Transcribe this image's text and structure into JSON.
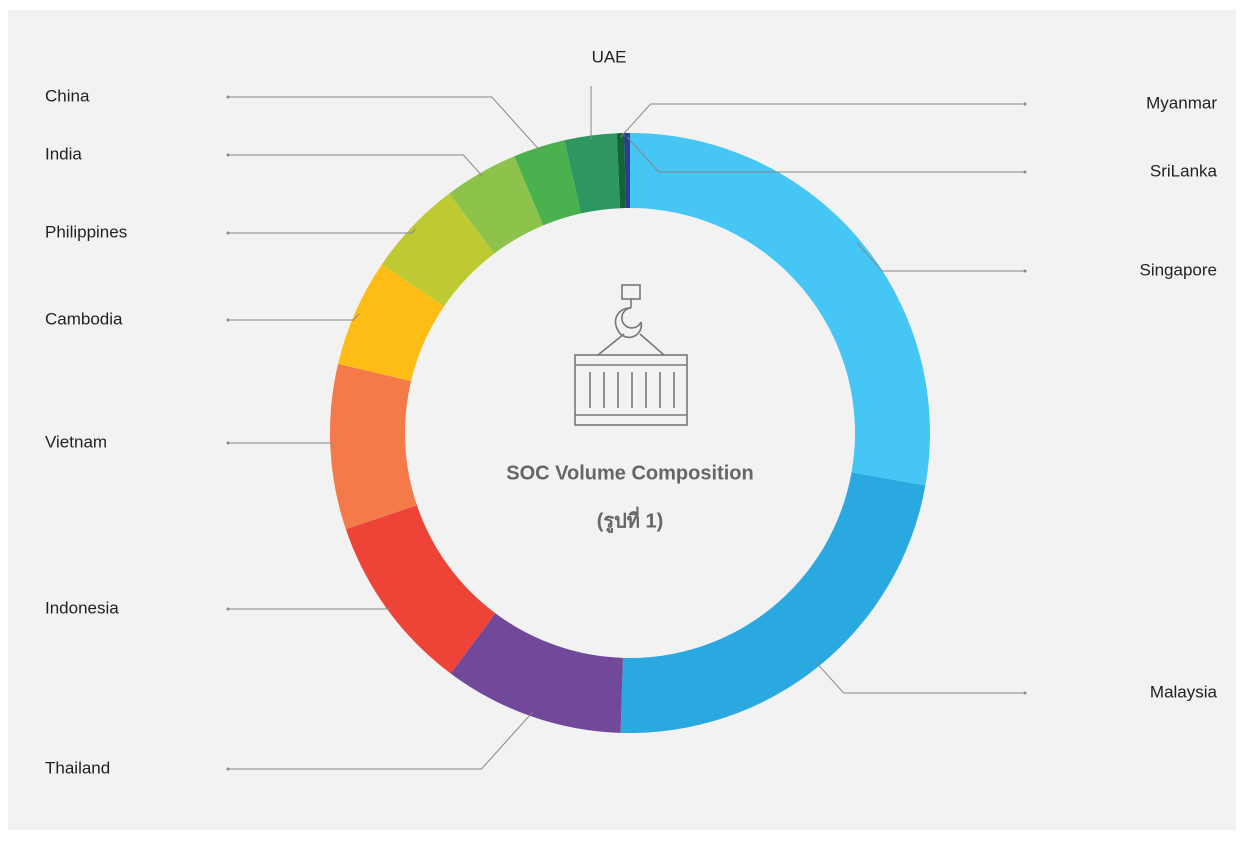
{
  "chart_data": {
    "type": "donut",
    "title": "SOC Volume Composition",
    "subtitle": "(รูปที่ 1)",
    "categories": [
      "Singapore",
      "Malaysia",
      "Thailand",
      "Indonesia",
      "Vietnam",
      "Cambodia",
      "Philippines",
      "India",
      "China",
      "UAE",
      "Myanmar",
      "SriLanka"
    ],
    "values": [
      27.8,
      22.7,
      9.7,
      9.6,
      8.9,
      5.8,
      5.2,
      4.0,
      2.8,
      2.8,
      0.4,
      0.3
    ],
    "colors": [
      "#45c6f5",
      "#29a9e0",
      "#72489b",
      "#ee4437",
      "#f47a4a",
      "#fdbd15",
      "#bfca33",
      "#8dc34a",
      "#4bb04e",
      "#2e9661",
      "#14623a",
      "#2a3e97"
    ]
  }
}
